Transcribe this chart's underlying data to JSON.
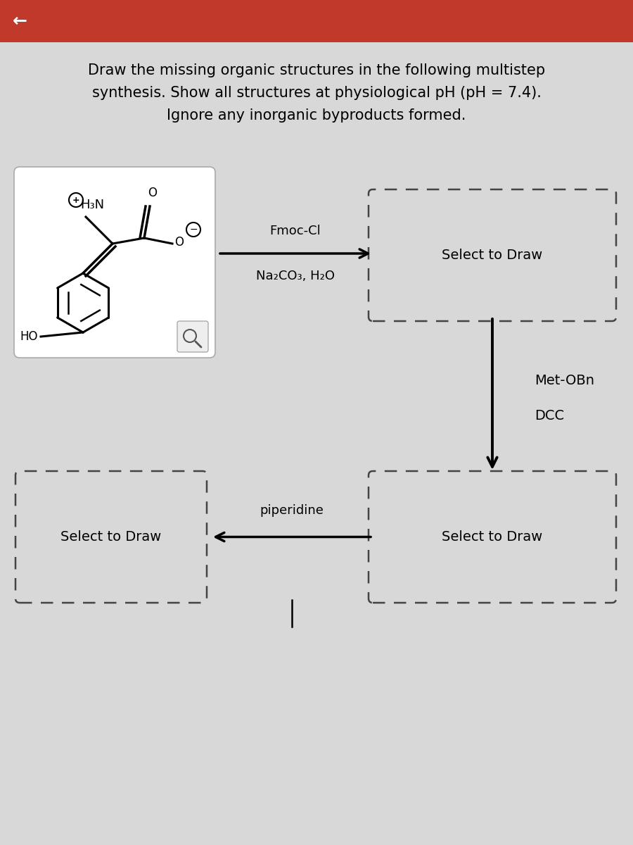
{
  "title_line1": "Draw the missing organic structures in the following multistep",
  "title_line2": "synthesis. Show all structures at physiological pH (pH = 7.4).",
  "title_line3": "Ignore any inorganic byproducts formed.",
  "header_color": "#c0392b",
  "background_color": "#d8d8d8",
  "box1_label": "Select to Draw",
  "box2_label": "Select to Draw",
  "box3_label": "Select to Draw",
  "reagent1_line1": "Fmoc-Cl",
  "reagent1_line2": "Na₂CO₃, H₂O",
  "reagent2_line1": "Met-OBn",
  "reagent2_line2": "DCC",
  "reagent3": "piperidine",
  "title_fontsize": 15,
  "label_fontsize": 14,
  "reagent_fontsize": 13
}
